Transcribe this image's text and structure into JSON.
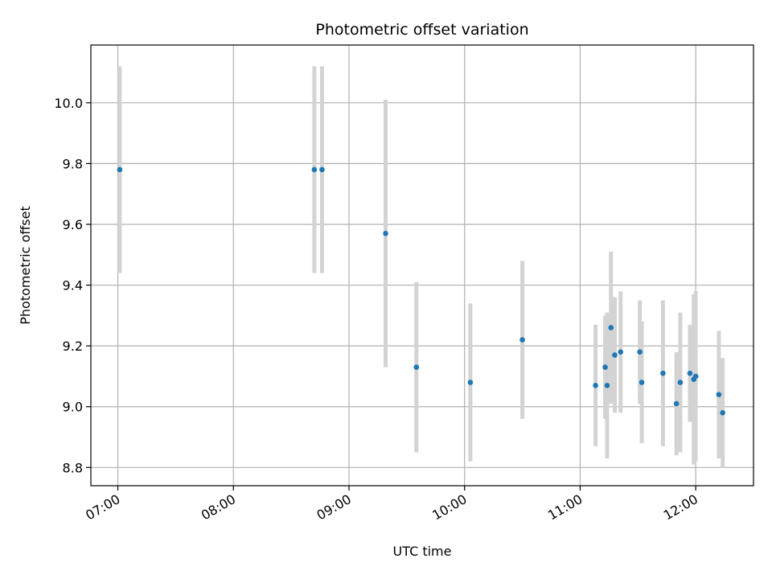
{
  "chart_data": {
    "type": "scatter",
    "title": "Photometric offset variation",
    "xlabel": "UTC time",
    "ylabel": "Photometric offset",
    "xlim": [
      "06:46",
      "12:30"
    ],
    "ylim": [
      8.74,
      10.19
    ],
    "x_ticks": [
      "07:00",
      "08:00",
      "09:00",
      "10:00",
      "11:00",
      "12:00"
    ],
    "y_ticks": [
      8.8,
      9.0,
      9.2,
      9.4,
      9.6,
      9.8,
      10.0
    ],
    "grid": true,
    "point_color": "#1f77b4",
    "errorbar_color": "#d3d3d3",
    "points": [
      {
        "x": "07:01",
        "y": 9.78,
        "yerr": 0.34
      },
      {
        "x": "08:42",
        "y": 9.78,
        "yerr": 0.34
      },
      {
        "x": "08:46",
        "y": 9.78,
        "yerr": 0.34
      },
      {
        "x": "09:19",
        "y": 9.57,
        "yerr": 0.44
      },
      {
        "x": "09:35",
        "y": 9.13,
        "yerr": 0.28
      },
      {
        "x": "10:03",
        "y": 9.08,
        "yerr": 0.26
      },
      {
        "x": "10:30",
        "y": 9.22,
        "yerr": 0.26
      },
      {
        "x": "11:08",
        "y": 9.07,
        "yerr": 0.2
      },
      {
        "x": "11:13",
        "y": 9.13,
        "yerr": 0.17
      },
      {
        "x": "11:14",
        "y": 9.07,
        "yerr": 0.24
      },
      {
        "x": "11:16",
        "y": 9.26,
        "yerr": 0.25
      },
      {
        "x": "11:18",
        "y": 9.17,
        "yerr": 0.19
      },
      {
        "x": "11:21",
        "y": 9.18,
        "yerr": 0.2
      },
      {
        "x": "11:31",
        "y": 9.18,
        "yerr": 0.17
      },
      {
        "x": "11:32",
        "y": 9.08,
        "yerr": 0.2
      },
      {
        "x": "11:43",
        "y": 9.11,
        "yerr": 0.24
      },
      {
        "x": "11:50",
        "y": 9.01,
        "yerr": 0.17
      },
      {
        "x": "11:52",
        "y": 9.08,
        "yerr": 0.23
      },
      {
        "x": "11:57",
        "y": 9.11,
        "yerr": 0.16
      },
      {
        "x": "11:59",
        "y": 9.09,
        "yerr": 0.28
      },
      {
        "x": "12:00",
        "y": 9.1,
        "yerr": 0.28
      },
      {
        "x": "12:12",
        "y": 9.04,
        "yerr": 0.21
      },
      {
        "x": "12:14",
        "y": 8.98,
        "yerr": 0.18
      }
    ]
  }
}
